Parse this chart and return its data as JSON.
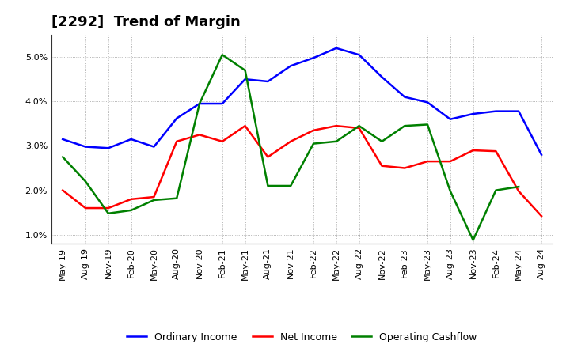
{
  "title": "[2292]  Trend of Margin",
  "x_labels": [
    "May-19",
    "Aug-19",
    "Nov-19",
    "Feb-20",
    "May-20",
    "Aug-20",
    "Nov-20",
    "Feb-21",
    "May-21",
    "Aug-21",
    "Nov-21",
    "Feb-22",
    "May-22",
    "Aug-22",
    "Nov-22",
    "Feb-23",
    "May-23",
    "Aug-23",
    "Nov-23",
    "Feb-24",
    "May-24",
    "Aug-24"
  ],
  "ordinary_income": [
    3.15,
    2.98,
    2.95,
    3.15,
    2.98,
    3.62,
    3.95,
    3.95,
    4.5,
    4.45,
    4.8,
    4.98,
    5.2,
    5.05,
    4.55,
    4.1,
    3.98,
    3.6,
    3.72,
    3.78,
    3.78,
    2.8
  ],
  "net_income": [
    2.0,
    1.6,
    1.6,
    1.8,
    1.85,
    3.1,
    3.25,
    3.1,
    3.45,
    2.75,
    3.1,
    3.35,
    3.45,
    3.4,
    2.55,
    2.5,
    2.65,
    2.65,
    2.9,
    2.88,
    1.98,
    1.42
  ],
  "operating_cashflow": [
    2.75,
    2.2,
    1.48,
    1.55,
    1.78,
    1.82,
    3.95,
    5.05,
    4.7,
    2.1,
    2.1,
    3.05,
    3.1,
    3.45,
    3.1,
    3.45,
    3.48,
    1.98,
    0.88,
    2.0,
    2.08,
    null
  ],
  "ordinary_income_color": "#0000FF",
  "net_income_color": "#FF0000",
  "operating_cashflow_color": "#008000",
  "ylim": [
    0.8,
    5.5
  ],
  "yticks": [
    1.0,
    2.0,
    3.0,
    4.0,
    5.0
  ],
  "background_color": "#FFFFFF",
  "plot_bg_color": "#FFFFFF",
  "grid_color": "#888888",
  "title_fontsize": 13,
  "tick_fontsize": 8,
  "legend_labels": [
    "Ordinary Income",
    "Net Income",
    "Operating Cashflow"
  ],
  "line_width": 1.8
}
